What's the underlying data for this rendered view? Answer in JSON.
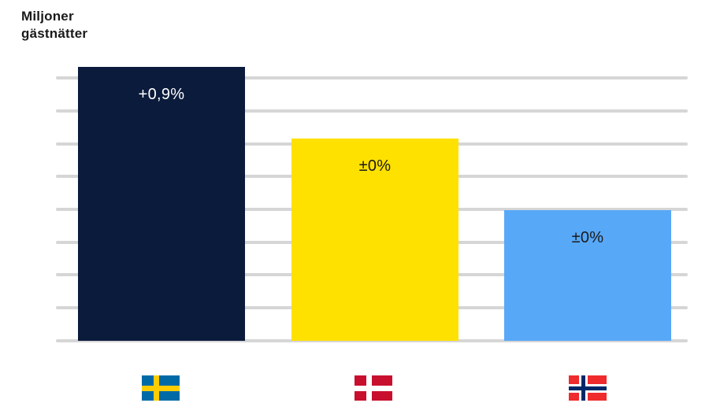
{
  "title": {
    "line1": "Miljoner",
    "line2": "gästnätter"
  },
  "chart_data": {
    "type": "bar",
    "title": "Miljoner gästnätter",
    "categories": [
      "Sverige",
      "Danmark",
      "Norge"
    ],
    "values": [
      8.36,
      6.17,
      4.0
    ],
    "value_note": "heights in gridline units; y-axis has no tick labels",
    "data_labels": [
      "+0,9%",
      "±0%",
      "±0%"
    ],
    "bar_colors": [
      "#0B1B3C",
      "#FFE100",
      "#58A8F8"
    ],
    "label_colors": [
      "#FFFFFF",
      "#1A1A1A",
      "#1A1A1A"
    ],
    "ylim": [
      0,
      9
    ],
    "gridline_count": 9,
    "grid_color": "#D6D6D6",
    "grid_on": true,
    "legend_position": "flags below bars"
  },
  "flags": [
    {
      "country": "Sverige",
      "field": "#006AA7",
      "cross": "#FECC00",
      "fimb": "#FFFFFF"
    },
    {
      "country": "Danmark",
      "field": "#C8102E",
      "cross": "#FFFFFF",
      "fimb": "#FFFFFF"
    },
    {
      "country": "Norge",
      "field": "#EF2B2D",
      "cross": "#002868",
      "fimb": "#FFFFFF"
    }
  ]
}
